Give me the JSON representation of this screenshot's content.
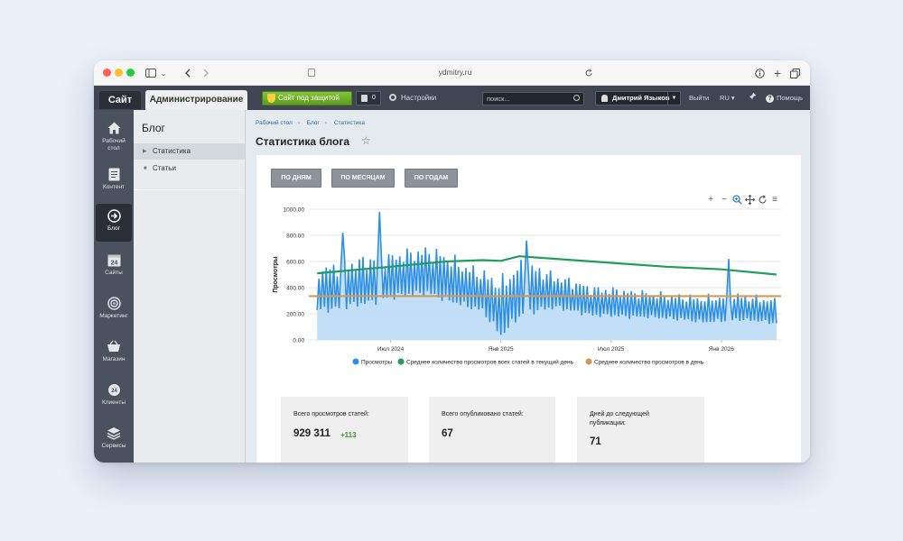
{
  "browser": {
    "url": "ydmitry.ru"
  },
  "topbar": {
    "site_tab": "Сайт",
    "admin_tab": "Администрирование",
    "protection_label": "Сайт под защитой",
    "notifications_count": "0",
    "settings_label": "Настройки",
    "search_placeholder": "поиск...",
    "user_name": "Дмитрий Языков",
    "logout_label": "Выйти",
    "language_label": "RU",
    "help_label": "Помощь"
  },
  "iconbar": {
    "items": [
      {
        "label_line1": "Рабочий",
        "label_line2": "стол",
        "icon": "home-icon"
      },
      {
        "label_line1": "Контент",
        "label_line2": "",
        "icon": "document-icon"
      },
      {
        "label_line1": "Блог",
        "label_line2": "",
        "icon": "arrow-circle-icon"
      },
      {
        "label_line1": "Сайты",
        "label_line2": "",
        "icon": "calendar-icon",
        "icon_text": "24"
      },
      {
        "label_line1": "Маркетинг",
        "label_line2": "",
        "icon": "target-icon"
      },
      {
        "label_line1": "Магазин",
        "label_line2": "",
        "icon": "basket-icon"
      },
      {
        "label_line1": "Клиенты",
        "label_line2": "",
        "icon": "clients-icon",
        "icon_text": "24"
      },
      {
        "label_line1": "Сервисы",
        "label_line2": "",
        "icon": "layers-icon"
      }
    ]
  },
  "menu": {
    "title": "Блог",
    "items": [
      {
        "label": "Статистика"
      },
      {
        "label": "Статьи"
      }
    ]
  },
  "breadcrumb": [
    "Рабочий стол",
    "Блог",
    "Статистика"
  ],
  "page_title": "Статистика блога",
  "period_buttons": [
    "ПО ДНЯМ",
    "ПО МЕСЯЦАМ",
    "ПО ГОДАМ"
  ],
  "chart_data": {
    "type": "area",
    "title": "",
    "ylabel": "Просмотры",
    "xlabel": "",
    "ylim": [
      0,
      1000
    ],
    "y_ticks": [
      "0.00",
      "200.00",
      "400.00",
      "600.00",
      "800.00",
      "1000.00"
    ],
    "x_ticks": [
      "Июл 2024",
      "Янв 2025",
      "Июл 2025",
      "Янв 2026"
    ],
    "grid": true,
    "legend_position": "bottom",
    "colors": {
      "views": "#2e8fe6",
      "views_fill": "#b9d9f7",
      "avg_all": "#1f9e5a",
      "avg_day": "#d39a52"
    },
    "series": [
      {
        "name": "Просмотры",
        "x": [
          "2024-03",
          "2024-04",
          "2024-05",
          "2024-06",
          "2024-07",
          "2024-08",
          "2024-09",
          "2024-10",
          "2024-11",
          "2024-12",
          "2025-01",
          "2025-02",
          "2025-03",
          "2025-04",
          "2025-05",
          "2025-06",
          "2025-07",
          "2025-08",
          "2025-09",
          "2025-10",
          "2025-11",
          "2025-12",
          "2026-01",
          "2026-02",
          "2026-03",
          "2026-04"
        ],
        "low": [
          200,
          210,
          240,
          260,
          300,
          320,
          330,
          280,
          240,
          200,
          0,
          150,
          200,
          230,
          200,
          170,
          170,
          160,
          160,
          150,
          140,
          120,
          130,
          140,
          130,
          110
        ],
        "high": [
          590,
          620,
          650,
          680,
          690,
          720,
          740,
          700,
          610,
          560,
          500,
          630,
          600,
          520,
          480,
          430,
          420,
          400,
          390,
          370,
          360,
          350,
          360,
          370,
          350,
          330
        ],
        "peaks": [
          {
            "x": "2024-04",
            "y": 820
          },
          {
            "x": "2024-06",
            "y": 980
          },
          {
            "x": "2025-02",
            "y": 760
          },
          {
            "x": "2026-01",
            "y": 620
          }
        ]
      },
      {
        "name": "Среднее количество просмотров всех статей в текущий день",
        "x": [
          "2024-03",
          "2024-07",
          "2024-10",
          "2024-12",
          "2025-01",
          "2025-02",
          "2025-04",
          "2025-07",
          "2025-10",
          "2026-01",
          "2026-04"
        ],
        "values": [
          510,
          560,
          600,
          610,
          605,
          640,
          620,
          590,
          560,
          540,
          500
        ]
      },
      {
        "name": "Среднее количество просмотров в день",
        "x": [
          "2024-03",
          "2026-04"
        ],
        "values": [
          335,
          335
        ]
      }
    ]
  },
  "stats": [
    {
      "label_line1": "Всего просмотров статей:",
      "label_line2": "",
      "value": "929 311",
      "delta": "+113"
    },
    {
      "label_line1": "Всего опубликовано статей:",
      "label_line2": "",
      "value": "67",
      "delta": ""
    },
    {
      "label_line1": "Дней до следующей",
      "label_line2": "публикации:",
      "value": "71",
      "delta": ""
    }
  ]
}
